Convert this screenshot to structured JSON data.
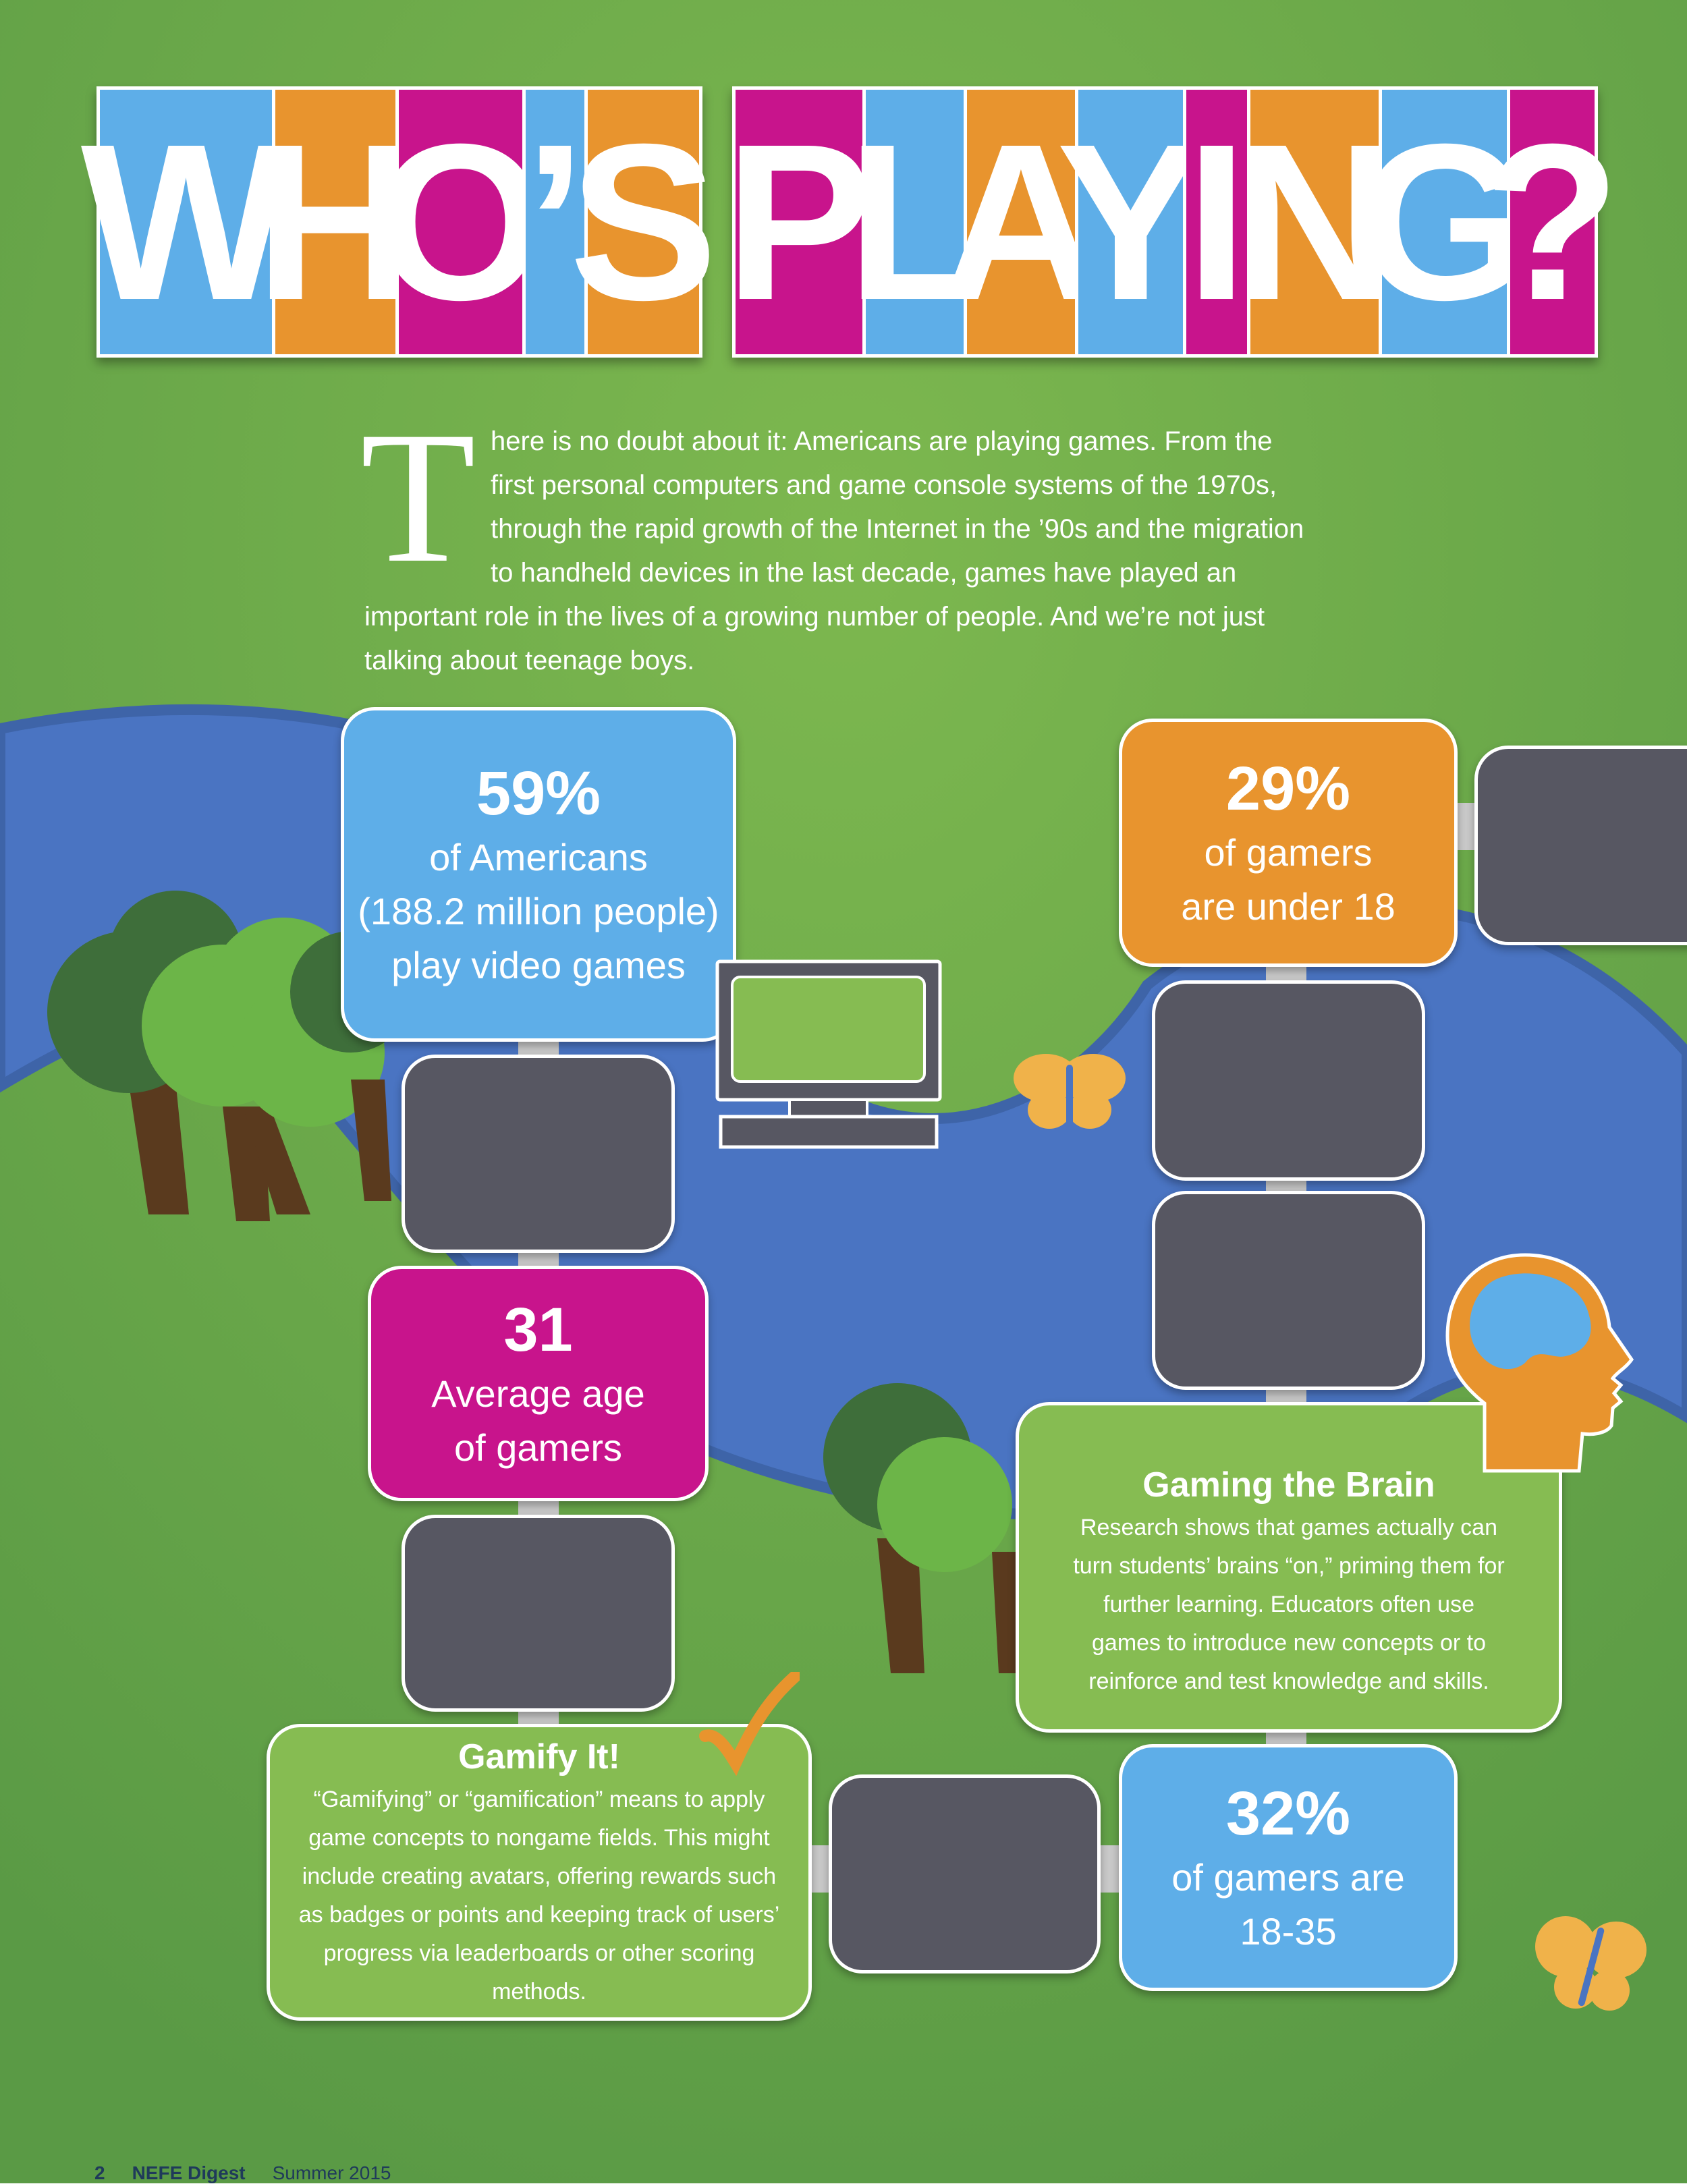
{
  "title": {
    "word1": [
      "W",
      "H",
      "O",
      "’",
      "S"
    ],
    "word2": [
      "P",
      "L",
      "A",
      "Y",
      "I",
      "N",
      "G",
      "?"
    ]
  },
  "colors": {
    "blue": "#5eaee8",
    "orange": "#e8942e",
    "magenta": "#c8148c",
    "green_box": "#86bc52",
    "dark_tile": "#575762",
    "river": "#4a74c2",
    "grass": "#5d9c48"
  },
  "intro": {
    "dropcap": "T",
    "text": "here is no doubt about it: Americans are playing games. From the first personal computers and game console systems of the 1970s, through the rapid growth of the Internet in the ’90s and the migration to handheld devices in the last decade, games have played an important role in the lives of a growing number of people. And we’re not just talking about teenage boys."
  },
  "stats": {
    "americans": {
      "value": "59%",
      "line1": "of Americans",
      "line2": "(188.2 million people)",
      "line3": "play video games"
    },
    "age": {
      "value": "31",
      "line1": "Average age",
      "line2": "of gamers"
    },
    "under18": {
      "value": "29%",
      "line1": "of gamers",
      "line2": "are under 18"
    },
    "age18_35": {
      "value": "32%",
      "line1": "of gamers are",
      "line2": "18-35"
    }
  },
  "boxes": {
    "gamify": {
      "title": "Gamify It!",
      "body": "“Gamifying” or “gamification” means to apply game concepts to nongame fields. This might include creating avatars, offering rewards such as badges or points and keeping track of users’ progress via leaderboards or other scoring methods."
    },
    "brain": {
      "title": "Gaming the Brain",
      "body": "Research shows that games actually can turn students’ brains “on,” priming them for further learning. Educators often use games to introduce new concepts or to reinforce and test knowledge and skills."
    }
  },
  "icons": [
    "computer-monitor-icon",
    "butterfly-icon",
    "head-brain-icon",
    "checkmark-icon",
    "tree-icon"
  ],
  "footer": {
    "page": "2",
    "publication": "NEFE Digest",
    "issue": "Summer 2015"
  }
}
